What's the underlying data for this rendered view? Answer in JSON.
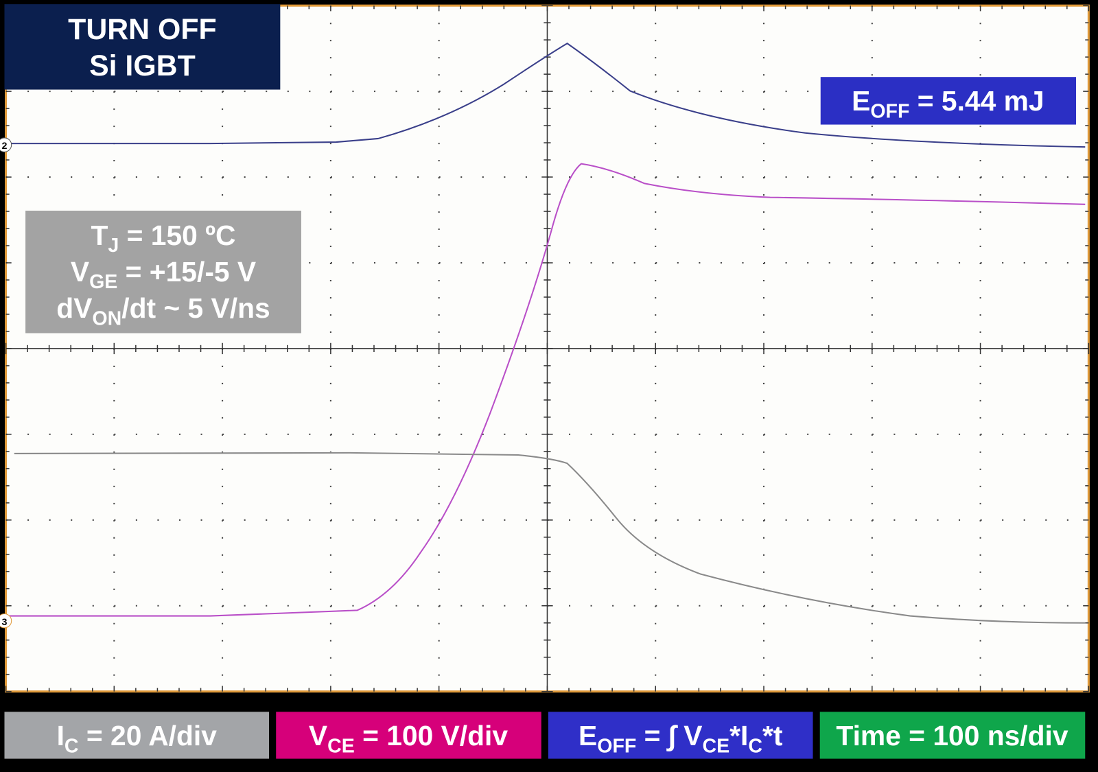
{
  "title_box": {
    "lines": [
      "TURN OFF",
      "Si IGBT"
    ]
  },
  "energy_box": {
    "label": [
      {
        "text": "E"
      },
      {
        "sub": "OFF"
      },
      {
        "text": " = 5.44 mJ"
      }
    ]
  },
  "conditions_box": {
    "lines": [
      [
        {
          "text": "T"
        },
        {
          "sub": "J"
        },
        {
          "text": " = 150 ºC"
        }
      ],
      [
        {
          "text": "V"
        },
        {
          "sub": "GE"
        },
        {
          "text": " = +15/-5 V"
        }
      ],
      [
        {
          "text": "dV"
        },
        {
          "sub": "ON"
        },
        {
          "text": "/dt ~ 5 V/ns"
        }
      ]
    ]
  },
  "channel_markers": [
    "2",
    "3"
  ],
  "legend": [
    [
      {
        "text": "I"
      },
      {
        "sub": "C"
      },
      {
        "text": " = 20 A/div"
      }
    ],
    [
      {
        "text": "V"
      },
      {
        "sub": "CE"
      },
      {
        "text": " = 100 V/div"
      }
    ],
    [
      {
        "text": "E"
      },
      {
        "sub": "OFF"
      },
      {
        "text": " = ∫ V"
      },
      {
        "sub": "CE"
      },
      {
        "text": "*I"
      },
      {
        "sub": "C"
      },
      {
        "text": "*t"
      }
    ],
    [
      {
        "text": "Time = 100 ns/div"
      }
    ]
  ]
}
